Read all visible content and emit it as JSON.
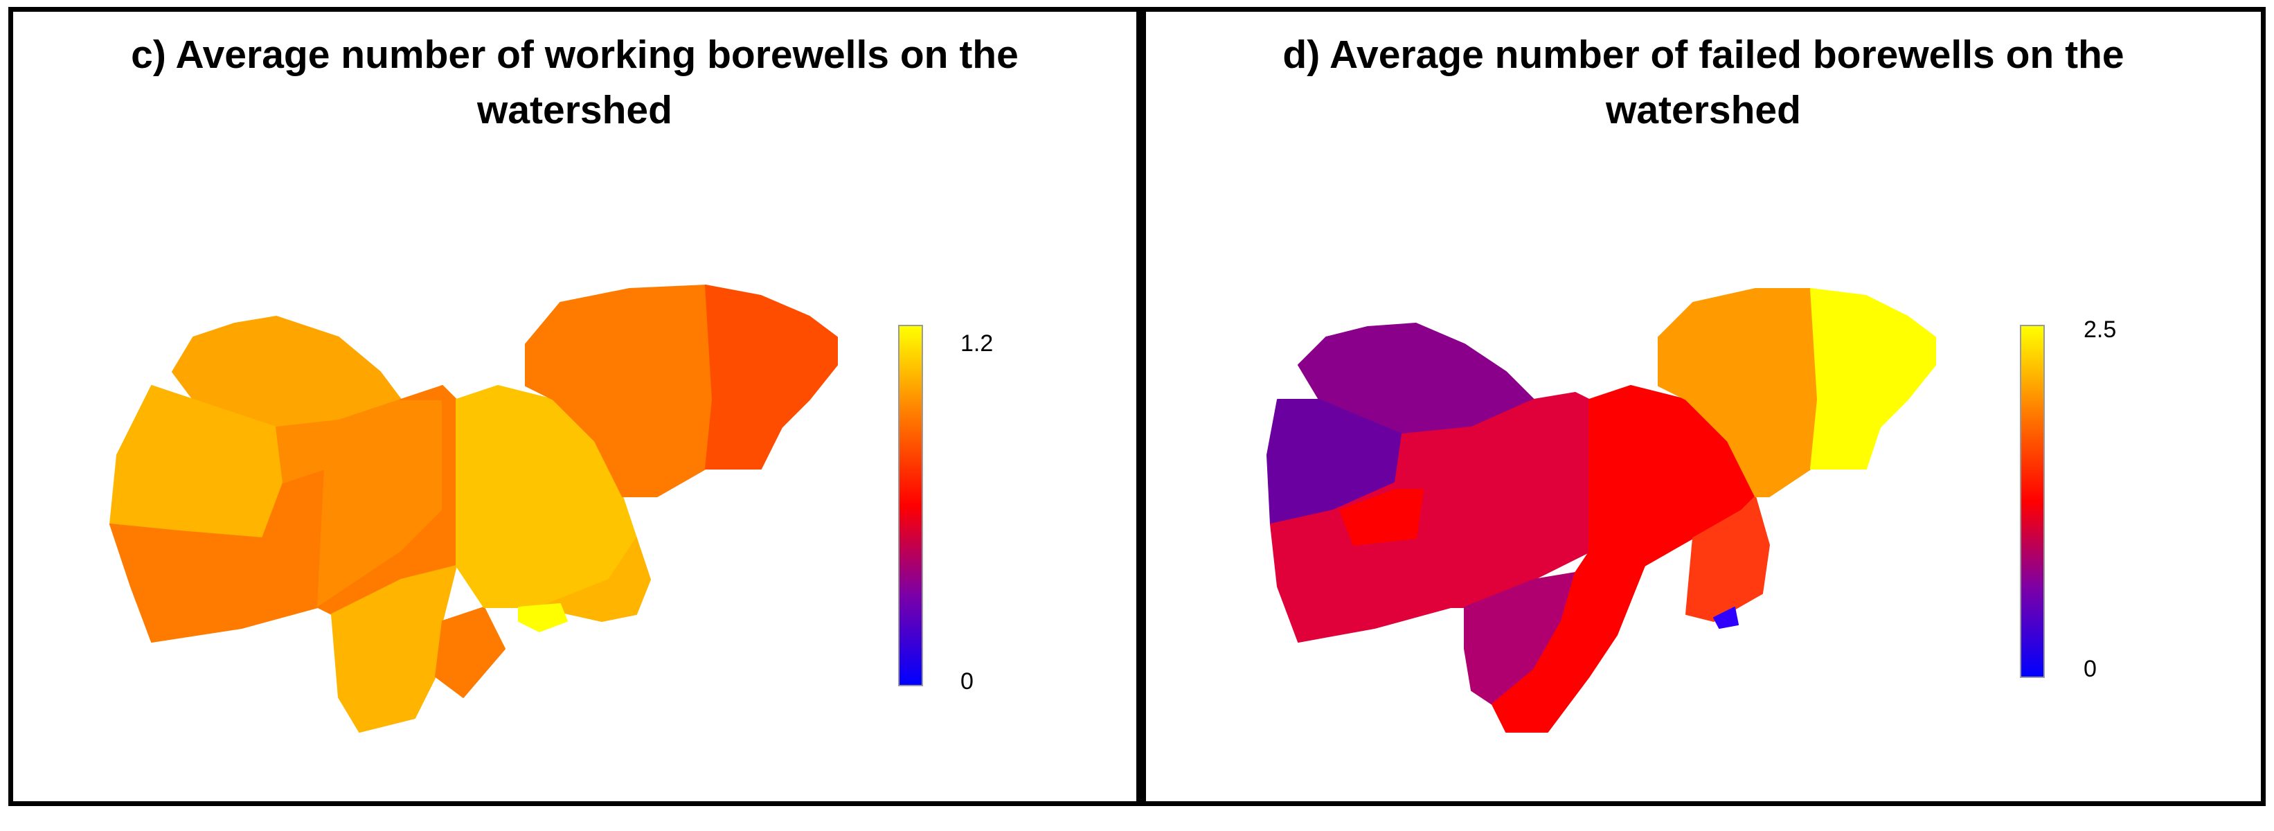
{
  "panels": [
    {
      "title_line1": "c) Average number of working borewells on the",
      "title_line2": "watershed",
      "legend": {
        "max_label": "1.2",
        "min_label": "0",
        "min_value": 0,
        "max_value": 1.2
      }
    },
    {
      "title_line1": "d) Average number of failed borewells on the",
      "title_line2": "watershed",
      "legend": {
        "max_label": "2.5",
        "min_label": "0",
        "min_value": 0,
        "max_value": 2.5
      }
    }
  ],
  "colors": {
    "scale": [
      "#0000ff",
      "#7b00a8",
      "#ff0000",
      "#ff7a00",
      "#ffff00"
    ],
    "c_orange_dark": "#ff7b00",
    "c_orange_med": "#ff8c00",
    "c_orange_light": "#ffa500",
    "c_gold": "#ffb400",
    "c_gold_light": "#ffc400",
    "c_red_orange": "#ff4d00",
    "c_yellow": "#ffff00",
    "d_purple": "#8a008a",
    "d_violet": "#6a00a0",
    "d_crimson": "#e0003a",
    "d_red": "#ff0000",
    "d_red_orange": "#ff3a10",
    "d_orange": "#ff9a00",
    "d_yellow": "#ffff00",
    "d_magenta": "#b00070",
    "d_blue": "#3000ff"
  }
}
